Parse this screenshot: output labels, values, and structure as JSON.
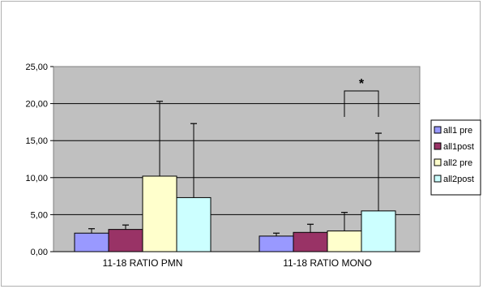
{
  "chart_data": {
    "type": "bar",
    "title": "",
    "xlabel": "",
    "ylabel": "",
    "categories": [
      "11-18 RATIO PMN",
      "11-18 RATIO MONO"
    ],
    "ylim": [
      0,
      25
    ],
    "yticks": [
      "0,00",
      "5,00",
      "10,00",
      "15,00",
      "20,00",
      "25,00"
    ],
    "grid": true,
    "legend_position": "right",
    "series": [
      {
        "name": "all1 pre",
        "color": "#9999ff",
        "values": [
          2.5,
          2.1
        ],
        "err_upper": [
          3.1,
          2.5
        ]
      },
      {
        "name": "all1post",
        "color": "#993366",
        "values": [
          3.0,
          2.6
        ],
        "err_upper": [
          3.6,
          3.7
        ]
      },
      {
        "name": "all2 pre",
        "color": "#ffffcc",
        "values": [
          10.2,
          2.8
        ],
        "err_upper": [
          20.3,
          5.3
        ]
      },
      {
        "name": "all2post",
        "color": "#ccffff",
        "values": [
          7.3,
          5.5
        ],
        "err_upper": [
          17.3,
          16.0
        ]
      }
    ],
    "annotations": [
      {
        "text": "*",
        "category": "11-18 RATIO MONO",
        "between_series": [
          "all2 pre",
          "all2post"
        ]
      }
    ],
    "plot_background": "#c0c0c0"
  }
}
